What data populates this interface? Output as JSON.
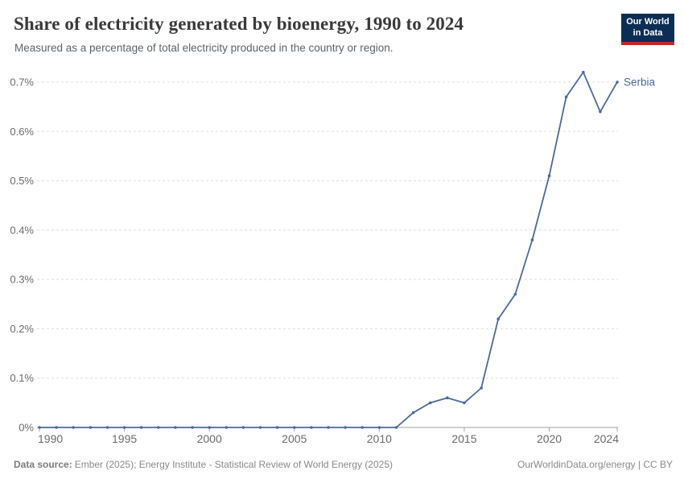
{
  "header": {
    "title": "Share of electricity generated by bioenergy, 1990 to 2024",
    "subtitle": "Measured as a percentage of total electricity produced in the country or region."
  },
  "logo": {
    "line1": "Our World",
    "line2": "in Data",
    "background_color": "#0d2e54",
    "stripe_color": "#c0272d",
    "text_color": "#ffffff"
  },
  "chart_data": {
    "type": "line",
    "title": "Share of electricity generated by bioenergy, 1990 to 2024",
    "unit": "%",
    "x": [
      1990,
      1991,
      1992,
      1993,
      1994,
      1995,
      1996,
      1997,
      1998,
      1999,
      2000,
      2001,
      2002,
      2003,
      2004,
      2005,
      2006,
      2007,
      2008,
      2009,
      2010,
      2011,
      2012,
      2013,
      2014,
      2015,
      2016,
      2017,
      2018,
      2019,
      2020,
      2021,
      2022,
      2023,
      2024
    ],
    "series": [
      {
        "name": "Serbia",
        "color": "#4c6a9c",
        "values": [
          0,
          0,
          0,
          0,
          0,
          0,
          0,
          0,
          0,
          0,
          0,
          0,
          0,
          0,
          0,
          0,
          0,
          0,
          0,
          0,
          0,
          0,
          0.03,
          0.05,
          0.06,
          0.05,
          0.08,
          0.22,
          0.27,
          0.38,
          0.51,
          0.67,
          0.72,
          0.64,
          0.7
        ]
      }
    ],
    "xlim": [
      1990,
      2024
    ],
    "ylim": [
      0,
      0.7
    ],
    "x_tick_values": [
      1990,
      1995,
      2000,
      2005,
      2010,
      2015,
      2020,
      2024
    ],
    "x_tick_labels": [
      "1990",
      "1995",
      "2000",
      "2005",
      "2010",
      "2015",
      "2020",
      "2024"
    ],
    "y_tick_values": [
      0,
      0.1,
      0.2,
      0.3,
      0.4,
      0.5,
      0.6,
      0.7
    ],
    "y_tick_labels": [
      "0%",
      "0.1%",
      "0.2%",
      "0.3%",
      "0.4%",
      "0.5%",
      "0.6%",
      "0.7%"
    ],
    "grid": "horizontal-dashed",
    "legend_position": "end-of-line-label",
    "gridline_color": "#dedede",
    "axis_color": "#a3a3a3",
    "tick_label_color": "#6b6b6b"
  },
  "footer": {
    "datasource_label": "Data source:",
    "datasource_text": "Ember (2025); Energy Institute - Statistical Review of World Energy (2025)",
    "attribution": "OurWorldinData.org/energy | CC BY"
  }
}
